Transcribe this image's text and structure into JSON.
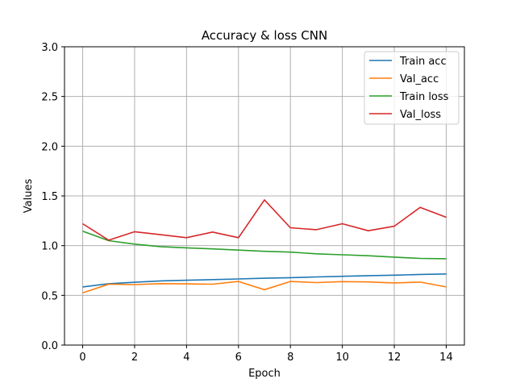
{
  "chart_data": {
    "type": "line",
    "title": "Accuracy & loss CNN",
    "xlabel": "Epoch",
    "ylabel": "Values",
    "xlim": [
      -0.7,
      14.7
    ],
    "ylim": [
      0.0,
      3.0
    ],
    "xticks": [
      0,
      2,
      4,
      6,
      8,
      10,
      12,
      14
    ],
    "yticks": [
      0.0,
      0.5,
      1.0,
      1.5,
      2.0,
      2.5,
      3.0
    ],
    "xtick_labels": [
      "0",
      "2",
      "4",
      "6",
      "8",
      "10",
      "12",
      "14"
    ],
    "ytick_labels": [
      "0.0",
      "0.5",
      "1.0",
      "1.5",
      "2.0",
      "2.5",
      "3.0"
    ],
    "grid": true,
    "legend_position": "top-right",
    "x": [
      0,
      1,
      2,
      3,
      4,
      5,
      6,
      7,
      8,
      9,
      10,
      11,
      12,
      13,
      14
    ],
    "series": [
      {
        "name": "Train acc",
        "color": "#1f77b4",
        "values": [
          0.585,
          0.617,
          0.632,
          0.645,
          0.652,
          0.658,
          0.665,
          0.672,
          0.678,
          0.685,
          0.692,
          0.698,
          0.703,
          0.71,
          0.715
        ]
      },
      {
        "name": "Val_acc",
        "color": "#ff7f0e",
        "values": [
          0.525,
          0.612,
          0.608,
          0.618,
          0.615,
          0.612,
          0.64,
          0.557,
          0.64,
          0.628,
          0.638,
          0.635,
          0.625,
          0.633,
          0.585
        ]
      },
      {
        "name": "Train loss",
        "color": "#2ca02c",
        "values": [
          1.145,
          1.05,
          1.015,
          0.99,
          0.978,
          0.967,
          0.955,
          0.943,
          0.935,
          0.918,
          0.908,
          0.898,
          0.885,
          0.872,
          0.868
        ]
      },
      {
        "name": "Val_loss",
        "color": "#d62728",
        "values": [
          1.22,
          1.055,
          1.14,
          1.11,
          1.08,
          1.137,
          1.08,
          1.46,
          1.18,
          1.16,
          1.22,
          1.15,
          1.195,
          1.385,
          1.285
        ]
      }
    ]
  }
}
